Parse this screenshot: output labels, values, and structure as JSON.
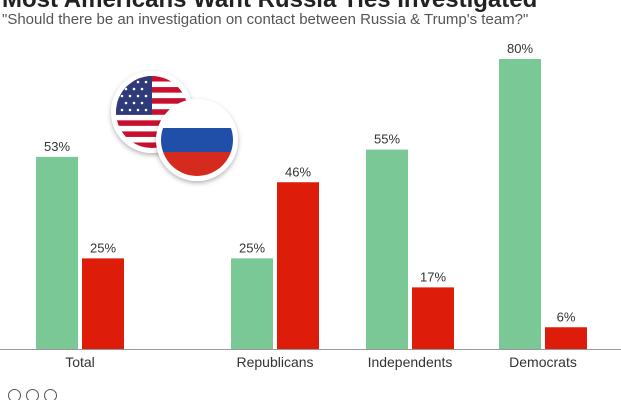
{
  "header": {
    "title": "Most Americans Want Russia Ties Investigated",
    "subtitle": "\"Should there be an investigation on contact between Russia & Trump's team?\""
  },
  "chart_data": {
    "type": "bar",
    "categories": [
      "Total",
      "Republicans",
      "Independents",
      "Democrats"
    ],
    "series": [
      {
        "values": [
          53,
          25,
          55,
          80
        ],
        "labels": [
          "53%",
          "25%",
          "55%",
          "80%"
        ],
        "color": "#7ac895"
      },
      {
        "values": [
          25,
          46,
          17,
          6
        ],
        "labels": [
          "25%",
          "46%",
          "17%",
          "6%"
        ],
        "color": "#dd1c0a"
      }
    ],
    "ylim": [
      0,
      80
    ],
    "grid": false,
    "legend": "none",
    "xlabel": "",
    "ylabel": ""
  },
  "decorations": {
    "flags": [
      "us-flag-icon",
      "russia-flag-icon"
    ],
    "footer_icons": [
      "cc-icon",
      "info-icon",
      "equals-icon"
    ]
  }
}
